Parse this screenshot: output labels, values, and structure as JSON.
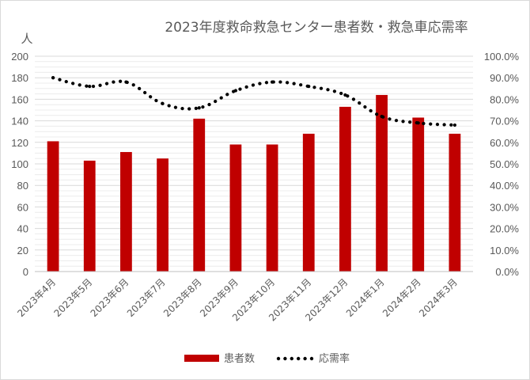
{
  "chart_data": {
    "type": "bar",
    "title": "2023年度救命救急センター患者数・救急車応需率",
    "ylabel": "人",
    "categories": [
      "2023年4月",
      "2023年5月",
      "2023年6月",
      "2023年7月",
      "2023年8月",
      "2023年9月",
      "2023年10月",
      "2023年11月",
      "2023年12月",
      "2024年1月",
      "2024年2月",
      "2024年3月"
    ],
    "y_left_ticks": [
      "0",
      "20",
      "40",
      "60",
      "80",
      "100",
      "120",
      "140",
      "160",
      "180",
      "200"
    ],
    "y_right_ticks": [
      "0.0%",
      "10.0%",
      "20.0%",
      "30.0%",
      "40.0%",
      "50.0%",
      "60.0%",
      "70.0%",
      "80.0%",
      "90.0%",
      "100.0%"
    ],
    "ylim": [
      0,
      200
    ],
    "y2lim": [
      0,
      100
    ],
    "grid": true,
    "legend_position": "bottom",
    "series": [
      {
        "name": "患者数",
        "type": "bar",
        "axis": "left",
        "color": "#c00000",
        "values": [
          121,
          103,
          111,
          105,
          142,
          118,
          118,
          128,
          153,
          164,
          143,
          128
        ]
      },
      {
        "name": "応需率",
        "type": "line",
        "style": "dotted",
        "axis": "right",
        "color": "#000000",
        "values": [
          90.0,
          86.0,
          88.0,
          78.0,
          76.0,
          84.0,
          88.0,
          86.0,
          82.0,
          72.0,
          69.0,
          68.0
        ]
      }
    ]
  }
}
